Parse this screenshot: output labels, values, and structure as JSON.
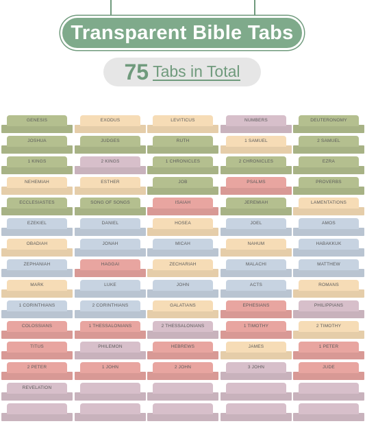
{
  "header": {
    "title": "Transparent Bible Tabs",
    "count": "75",
    "count_label": "Tabs in Total"
  },
  "colors": {
    "green": "#b4bf8f",
    "peach": "#f6dcb6",
    "mauve": "#d7bfca",
    "blue": "#c7d3e1",
    "pink": "#e8a5a0",
    "accent": "#7faa8b"
  },
  "tabs": [
    {
      "label": "GENESIS",
      "color": "green"
    },
    {
      "label": "EXODUS",
      "color": "peach"
    },
    {
      "label": "LEVITICUS",
      "color": "peach"
    },
    {
      "label": "NUMBERS",
      "color": "mauve"
    },
    {
      "label": "DEUTERONOMY",
      "color": "green"
    },
    {
      "label": "JOSHUA",
      "color": "green"
    },
    {
      "label": "JUDGES",
      "color": "green"
    },
    {
      "label": "RUTH",
      "color": "green"
    },
    {
      "label": "1 SAMUEL",
      "color": "peach"
    },
    {
      "label": "2 SAMUEL",
      "color": "green"
    },
    {
      "label": "1 KINGS",
      "color": "green"
    },
    {
      "label": "2 KINGS",
      "color": "mauve"
    },
    {
      "label": "1 CHRONICLES",
      "color": "green"
    },
    {
      "label": "2 CHRONICLES",
      "color": "green"
    },
    {
      "label": "EZRA",
      "color": "green"
    },
    {
      "label": "NEHEMIAH",
      "color": "peach"
    },
    {
      "label": "ESTHER",
      "color": "peach"
    },
    {
      "label": "JOB",
      "color": "green"
    },
    {
      "label": "PSALMS",
      "color": "pink"
    },
    {
      "label": "PROVERBS",
      "color": "green"
    },
    {
      "label": "ECCLESIASTES",
      "color": "green"
    },
    {
      "label": "SONG OF SONGS",
      "color": "green"
    },
    {
      "label": "ISAIAH",
      "color": "pink"
    },
    {
      "label": "JEREMIAH",
      "color": "green"
    },
    {
      "label": "LAMENTATIONS",
      "color": "peach"
    },
    {
      "label": "EZEKIEL",
      "color": "blue"
    },
    {
      "label": "DANIEL",
      "color": "blue"
    },
    {
      "label": "HOSEA",
      "color": "peach"
    },
    {
      "label": "JOEL",
      "color": "blue"
    },
    {
      "label": "AMOS",
      "color": "blue"
    },
    {
      "label": "OBADIAH",
      "color": "peach"
    },
    {
      "label": "JONAH",
      "color": "blue"
    },
    {
      "label": "MICAH",
      "color": "blue"
    },
    {
      "label": "NAHUM",
      "color": "peach"
    },
    {
      "label": "HABAKKUK",
      "color": "blue"
    },
    {
      "label": "ZEPHANIAH",
      "color": "blue"
    },
    {
      "label": "HAGGAI",
      "color": "pink"
    },
    {
      "label": "ZECHARIAH",
      "color": "peach"
    },
    {
      "label": "MALACHI",
      "color": "blue"
    },
    {
      "label": "MATTHEW",
      "color": "blue"
    },
    {
      "label": "MARK",
      "color": "peach"
    },
    {
      "label": "LUKE",
      "color": "blue"
    },
    {
      "label": "JOHN",
      "color": "blue"
    },
    {
      "label": "ACTS",
      "color": "blue"
    },
    {
      "label": "ROMANS",
      "color": "peach"
    },
    {
      "label": "1 CORINTHIANS",
      "color": "blue"
    },
    {
      "label": "2 CORINTHIANS",
      "color": "blue"
    },
    {
      "label": "GALATIANS",
      "color": "peach"
    },
    {
      "label": "EPHESIANS",
      "color": "pink"
    },
    {
      "label": "PHILIPPIANS",
      "color": "mauve"
    },
    {
      "label": "COLOSSIANS",
      "color": "pink"
    },
    {
      "label": "1 THESSALONIANS",
      "color": "pink"
    },
    {
      "label": "2 THESSALONIANS",
      "color": "mauve"
    },
    {
      "label": "1 TIMOTHY",
      "color": "pink"
    },
    {
      "label": "2 TIMOTHY",
      "color": "peach"
    },
    {
      "label": "TITUS",
      "color": "pink"
    },
    {
      "label": "PHILEMON",
      "color": "mauve"
    },
    {
      "label": "HEBREWS",
      "color": "pink"
    },
    {
      "label": "JAMES",
      "color": "peach"
    },
    {
      "label": "1 PETER",
      "color": "pink"
    },
    {
      "label": "2 PETER",
      "color": "pink"
    },
    {
      "label": "1 JOHN",
      "color": "pink"
    },
    {
      "label": "2 JOHN",
      "color": "pink"
    },
    {
      "label": "3 JOHN",
      "color": "mauve"
    },
    {
      "label": "JUDE",
      "color": "pink"
    },
    {
      "label": "REVELATION",
      "color": "mauve"
    },
    {
      "label": "",
      "color": "mauve"
    },
    {
      "label": "",
      "color": "mauve"
    },
    {
      "label": "",
      "color": "mauve"
    },
    {
      "label": "",
      "color": "mauve"
    },
    {
      "label": "",
      "color": "mauve"
    },
    {
      "label": "",
      "color": "mauve"
    },
    {
      "label": "",
      "color": "mauve"
    },
    {
      "label": "",
      "color": "mauve"
    },
    {
      "label": "",
      "color": "mauve"
    }
  ]
}
